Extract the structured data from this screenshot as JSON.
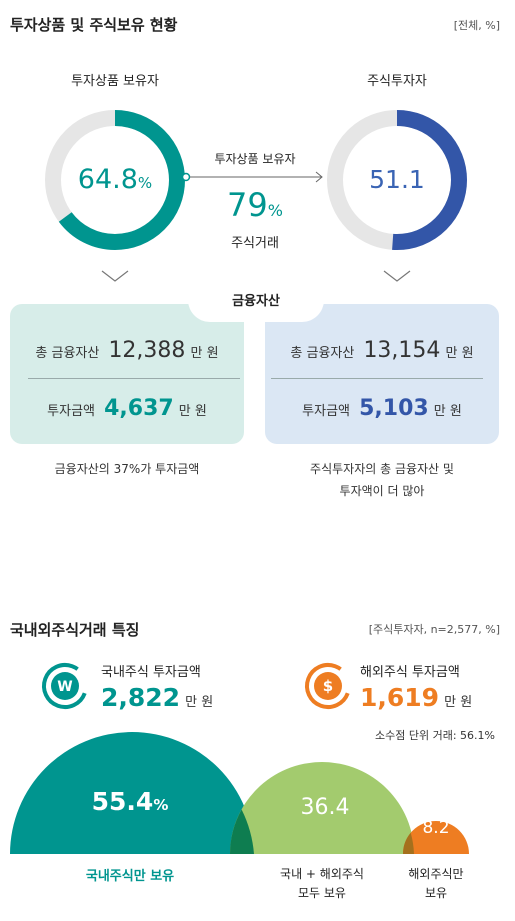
{
  "section1": {
    "title": "투자상품 및 주식보유 현황",
    "unit": "[전체, %]",
    "left_label": "투자상품 보유자",
    "right_label": "주식투자자",
    "left_value": "64.8",
    "left_percent_sign": "%",
    "left_fraction": 0.648,
    "right_value": "51.1",
    "right_fraction": 0.511,
    "arrow_label": "투자상품 보유자",
    "arrow_value": "79",
    "arrow_percent_sign": "%",
    "arrow_sub": "주식거래",
    "center_badge": "금융자산",
    "left_card": {
      "row1_label": "총 금융자산",
      "row1_value": "12,388",
      "row1_unit": "만 원",
      "row2_label": "투자금액",
      "row2_value": "4,637",
      "row2_unit": "만 원"
    },
    "right_card": {
      "row1_label": "총 금융자산",
      "row1_value": "13,154",
      "row1_unit": "만 원",
      "row2_label": "투자금액",
      "row2_value": "5,103",
      "row2_unit": "만 원"
    },
    "left_note": "금융자산의 37%가 투자금액",
    "right_note_1": "주식투자자의 총 금융자산 및",
    "right_note_2": "투자액이 더 많아"
  },
  "section2": {
    "title": "국내외주식거래 특징",
    "unit": "[주식투자자, n=2,577, %]",
    "domestic_icon_glyph": "W",
    "domestic_label": "국내주식 투자금액",
    "domestic_value": "2,822",
    "domestic_unit": "만 원",
    "foreign_icon_glyph": "$",
    "foreign_label": "해외주식 투자금액",
    "foreign_value": "1,619",
    "foreign_unit": "만 원",
    "fractional_note": "소수점 단위 거래: 56.1%",
    "circle1_value": "55.4",
    "circle1_percent_sign": "%",
    "circle2_value": "36.4",
    "circle3_value": "8.2",
    "caption1": "국내주식만 보유",
    "caption2_1": "국내 + 해외주식",
    "caption2_2": "모두 보유",
    "caption3_1": "해외주식만",
    "caption3_2": "보유"
  },
  "colors": {
    "teal": "#00958f",
    "blue": "#3356a8",
    "green": "#a3cb6e",
    "orange": "#ee7d22",
    "teal_card": "#d7ede9",
    "blue_card": "#dbe7f4",
    "gray_ring": "#e6e6e6"
  }
}
